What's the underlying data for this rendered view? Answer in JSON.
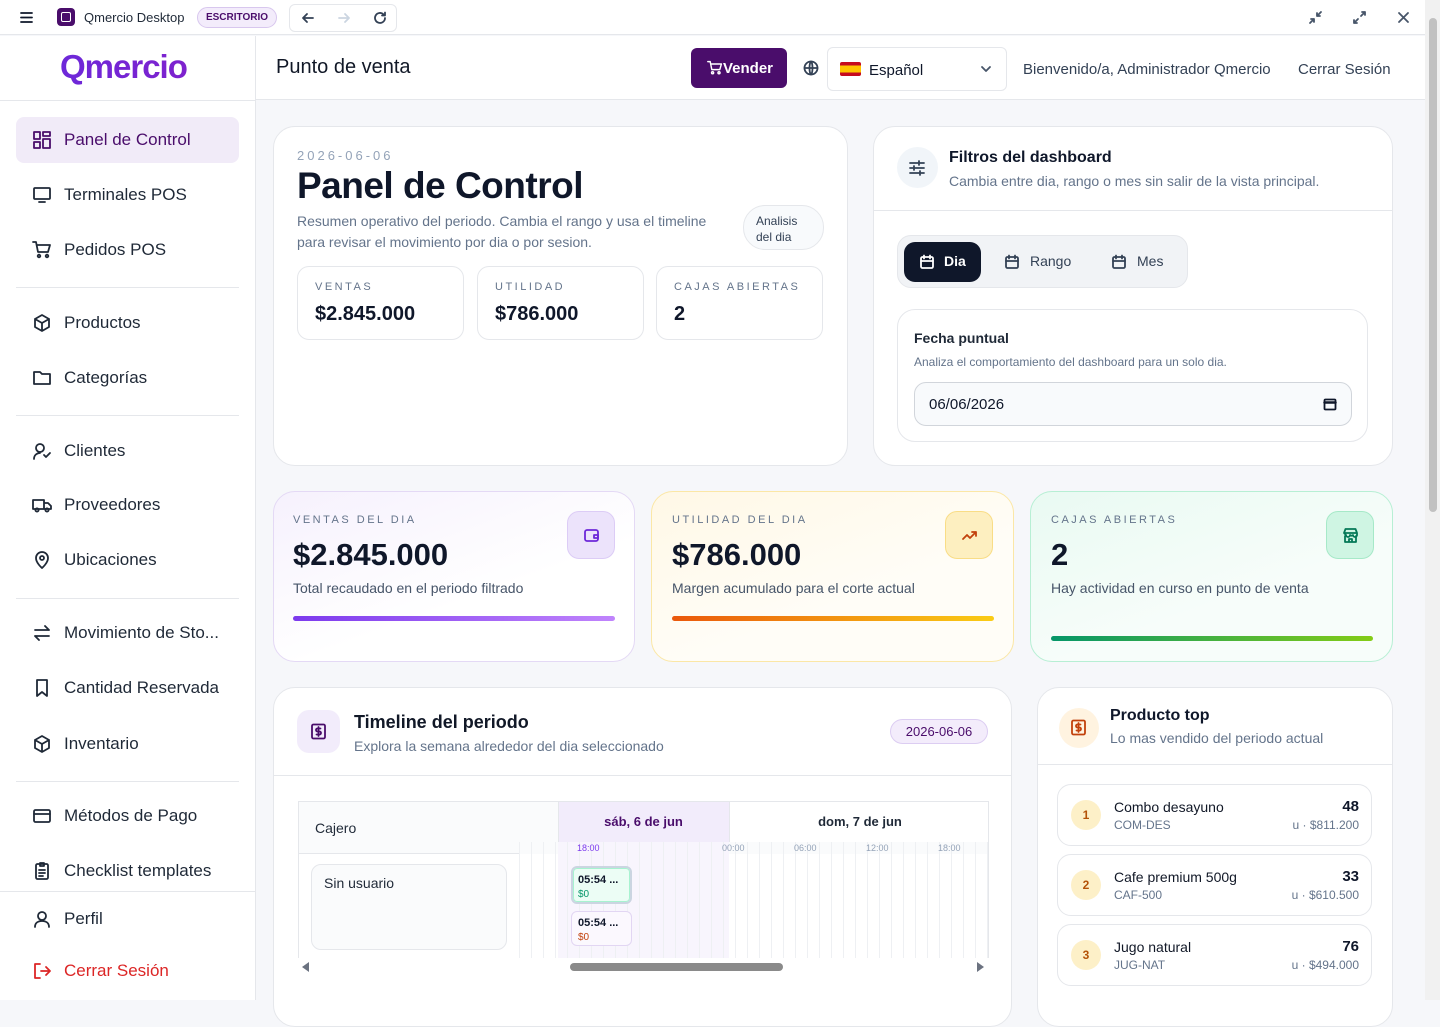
{
  "titlebar": {
    "app_name": "Qmercio Desktop",
    "badge": "ESCRITORIO"
  },
  "sidebar": {
    "logo": "Qmercio",
    "nav": [
      "Panel de Control",
      "Terminales POS",
      "Pedidos POS",
      "Productos",
      "Categorías",
      "Clientes",
      "Proveedores",
      "Ubicaciones",
      "Movimiento de Sto...",
      "Cantidad Reservada",
      "Inventario",
      "Métodos de Pago",
      "Checklist templates"
    ],
    "footer": [
      "Perfil",
      "Cerrar Sesión"
    ]
  },
  "header": {
    "title": "Punto de venta",
    "sell_button": "Vender",
    "language": "Español",
    "welcome": "Bienvenido/a, Administrador Qmercio",
    "logout": "Cerrar Sesión"
  },
  "summary": {
    "date": "2026-06-06",
    "title": "Panel de Control",
    "description": "Resumen operativo del periodo. Cambia el rango y usa el timeline para revisar el movimiento por dia o por sesion.",
    "chip": "Analisis del dia",
    "stats": [
      {
        "label": "VENTAS",
        "value": "$2.845.000"
      },
      {
        "label": "UTILIDAD",
        "value": "$786.000"
      },
      {
        "label": "CAJAS ABIERTAS",
        "value": "2"
      }
    ]
  },
  "filters": {
    "title": "Filtros del dashboard",
    "subtitle": "Cambia entre dia, rango o mes sin salir de la vista principal.",
    "tabs": [
      "Dia",
      "Rango",
      "Mes"
    ],
    "date_title": "Fecha puntual",
    "date_description": "Analiza el comportamiento del dashboard para un solo dia.",
    "date_value": "06/06/2026"
  },
  "kpis": [
    {
      "label": "VENTAS DEL DIA",
      "value": "$2.845.000",
      "note": "Total recaudado en el periodo filtrado"
    },
    {
      "label": "UTILIDAD DEL DIA",
      "value": "$786.000",
      "note": "Margen acumulado para el corte actual"
    },
    {
      "label": "CAJAS ABIERTAS",
      "value": "2",
      "note": "Hay actividad en curso en punto de venta"
    }
  ],
  "timeline": {
    "title": "Timeline del periodo",
    "subtitle": "Explora la semana alrededor del dia seleccionado",
    "badge": "2026-06-06",
    "column_header": "Cajero",
    "days": [
      "sáb, 6 de jun",
      "dom, 7 de jun"
    ],
    "hours": [
      "18:00",
      "00:00",
      "06:00",
      "12:00",
      "18:00"
    ],
    "row": "Sin usuario",
    "events": [
      {
        "time": "05:54 ...",
        "amount": "$0"
      },
      {
        "time": "05:54 ...",
        "amount": "$0"
      }
    ]
  },
  "top_products": {
    "title": "Producto top",
    "subtitle": "Lo mas vendido del periodo actual",
    "items": [
      {
        "rank": "1",
        "name": "Combo desayuno",
        "code": "COM-DES",
        "quantity": "48",
        "price": "u · $811.200"
      },
      {
        "rank": "2",
        "name": "Cafe premium 500g",
        "code": "CAF-500",
        "quantity": "33",
        "price": "u · $610.500"
      },
      {
        "rank": "3",
        "name": "Jugo natural",
        "code": "JUG-NAT",
        "quantity": "76",
        "price": "u · $494.000"
      }
    ]
  }
}
